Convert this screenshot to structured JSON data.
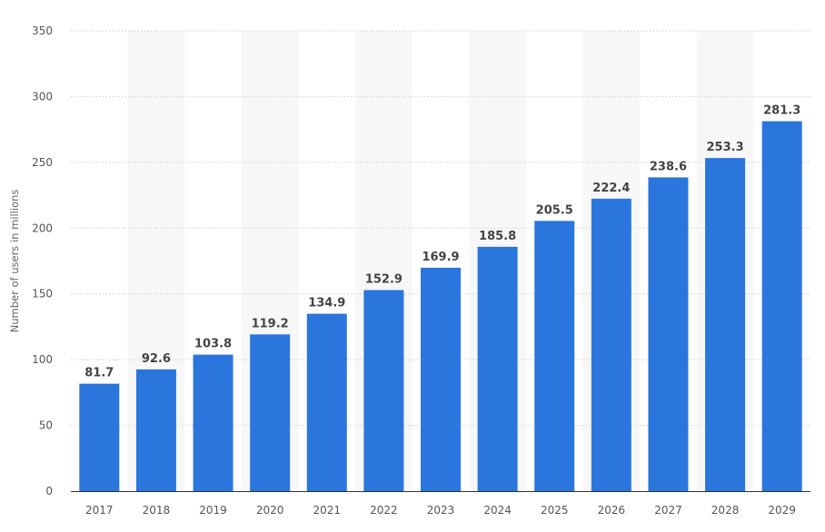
{
  "chart_data": {
    "type": "bar",
    "title": "",
    "xlabel": "",
    "ylabel": "Number of users in millions",
    "categories": [
      "2017",
      "2018",
      "2019",
      "2020",
      "2021",
      "2022",
      "2023",
      "2024",
      "2025",
      "2026",
      "2027",
      "2028",
      "2029"
    ],
    "values": [
      81.7,
      92.6,
      103.8,
      119.2,
      134.9,
      152.9,
      169.9,
      185.8,
      205.5,
      222.4,
      238.6,
      253.3,
      281.3
    ],
    "value_labels": [
      "81.7",
      "92.6",
      "103.8",
      "119.2",
      "134.9",
      "152.9",
      "169.9",
      "185.8",
      "205.5",
      "222.4",
      "238.6",
      "253.3",
      "281.3"
    ],
    "ylim": [
      0,
      350
    ],
    "yticks": [
      0,
      50,
      100,
      150,
      200,
      250,
      300,
      350
    ],
    "grid": true,
    "legend": "none",
    "colors": {
      "bar": "#2a76dd",
      "band": "#f7f7f7",
      "gridline": "#cfcfcf",
      "text": "#555555"
    }
  }
}
